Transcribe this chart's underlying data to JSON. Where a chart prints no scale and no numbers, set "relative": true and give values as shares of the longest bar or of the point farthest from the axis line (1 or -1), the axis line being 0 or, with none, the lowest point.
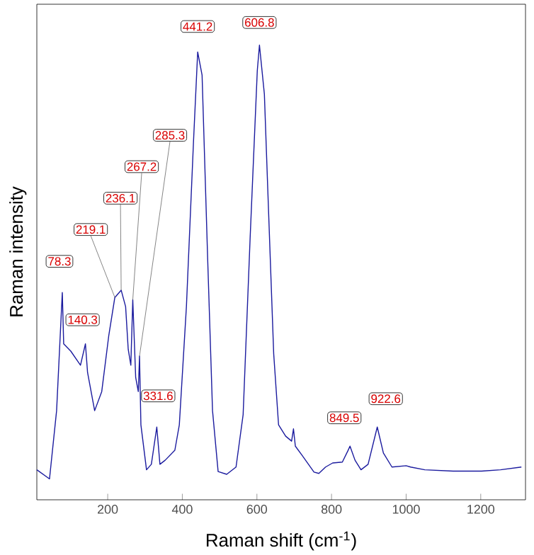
{
  "chart_data": {
    "type": "line",
    "relative": true,
    "xlabel": "Raman shift (cm$^{-1}$)",
    "ylabel": "Raman intensity",
    "xlim": [
      10,
      1320
    ],
    "xticks": [
      200,
      400,
      600,
      800,
      1000,
      1200
    ],
    "series": [
      {
        "color": "#1a1a9e",
        "x": [
          10,
          44,
          63,
          78.3,
          82,
          101,
          127,
          140.3,
          146,
          165,
          184,
          203,
          219.1,
          236.1,
          248,
          255,
          262,
          267.2,
          275,
          282,
          285.3,
          289,
          304,
          317,
          331.6,
          340,
          354,
          380,
          392,
          411,
          430,
          441.2,
          453,
          468,
          481,
          496,
          519,
          544,
          563,
          582,
          601,
          606.8,
          620,
          629,
          645,
          658,
          677,
          693,
          698,
          703,
          721,
          753,
          766,
          784,
          803,
          829,
          844,
          849.5,
          863,
          879,
          898,
          922.6,
          939,
          962,
          1000,
          1012,
          1050,
          1126,
          1202,
          1253,
          1309
        ],
        "values": [
          0.066,
          0.046,
          0.196,
          0.456,
          0.343,
          0.327,
          0.296,
          0.343,
          0.28,
          0.196,
          0.238,
          0.362,
          0.445,
          0.461,
          0.425,
          0.331,
          0.296,
          0.44,
          0.269,
          0.238,
          0.316,
          0.165,
          0.066,
          0.078,
          0.16,
          0.078,
          0.087,
          0.109,
          0.165,
          0.425,
          0.788,
          0.985,
          0.934,
          0.529,
          0.196,
          0.062,
          0.056,
          0.072,
          0.187,
          0.58,
          0.944,
          1.0,
          0.892,
          0.685,
          0.321,
          0.165,
          0.14,
          0.129,
          0.156,
          0.118,
          0.098,
          0.061,
          0.058,
          0.072,
          0.081,
          0.083,
          0.108,
          0.118,
          0.087,
          0.066,
          0.078,
          0.16,
          0.103,
          0.072,
          0.075,
          0.072,
          0.066,
          0.063,
          0.063,
          0.066,
          0.072
        ]
      }
    ],
    "annotations": [
      {
        "text": "78.3",
        "x": 78.3,
        "y": 0.456
      },
      {
        "text": "140.3",
        "x": 140.3,
        "y": 0.343
      },
      {
        "text": "219.1",
        "x": 219.1,
        "y": 0.445
      },
      {
        "text": "236.1",
        "x": 236.1,
        "y": 0.461
      },
      {
        "text": "267.2",
        "x": 267.2,
        "y": 0.44
      },
      {
        "text": "285.3",
        "x": 285.3,
        "y": 0.316
      },
      {
        "text": "331.6",
        "x": 331.6,
        "y": 0.16
      },
      {
        "text": "441.2",
        "x": 441.2,
        "y": 0.985
      },
      {
        "text": "606.8",
        "x": 606.8,
        "y": 1.0
      },
      {
        "text": "849.5",
        "x": 849.5,
        "y": 0.118
      },
      {
        "text": "922.6",
        "x": 922.6,
        "y": 0.16
      }
    ]
  }
}
